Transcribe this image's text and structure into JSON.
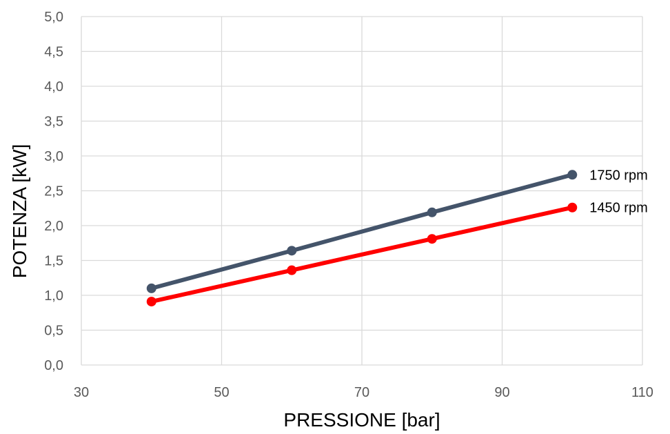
{
  "chart_data": {
    "type": "line",
    "title": "",
    "xlabel": "PRESSIONE [bar]",
    "ylabel": "POTENZA [kW]",
    "xlim": [
      30,
      110
    ],
    "ylim": [
      0,
      5
    ],
    "x_ticks": [
      30,
      50,
      70,
      90,
      110
    ],
    "x_tick_labels": [
      "30",
      "50",
      "70",
      "90",
      "110"
    ],
    "y_ticks": [
      0,
      0.5,
      1,
      1.5,
      2,
      2.5,
      3,
      3.5,
      4,
      4.5,
      5
    ],
    "y_tick_labels": [
      "0,0",
      "0,5",
      "1,0",
      "1,5",
      "2,0",
      "2,5",
      "3,0",
      "3,5",
      "4,0",
      "4,5",
      "5,0"
    ],
    "grid": true,
    "legend": "none (series labeled at line ends)",
    "series": [
      {
        "name": "1750 rpm",
        "color": "#44546A",
        "x": [
          40,
          60,
          80,
          100
        ],
        "values": [
          1.1,
          1.64,
          2.19,
          2.73
        ]
      },
      {
        "name": "1450 rpm",
        "color": "#FF0000",
        "x": [
          40,
          60,
          80,
          100
        ],
        "values": [
          0.91,
          1.36,
          1.81,
          2.26
        ]
      }
    ]
  }
}
